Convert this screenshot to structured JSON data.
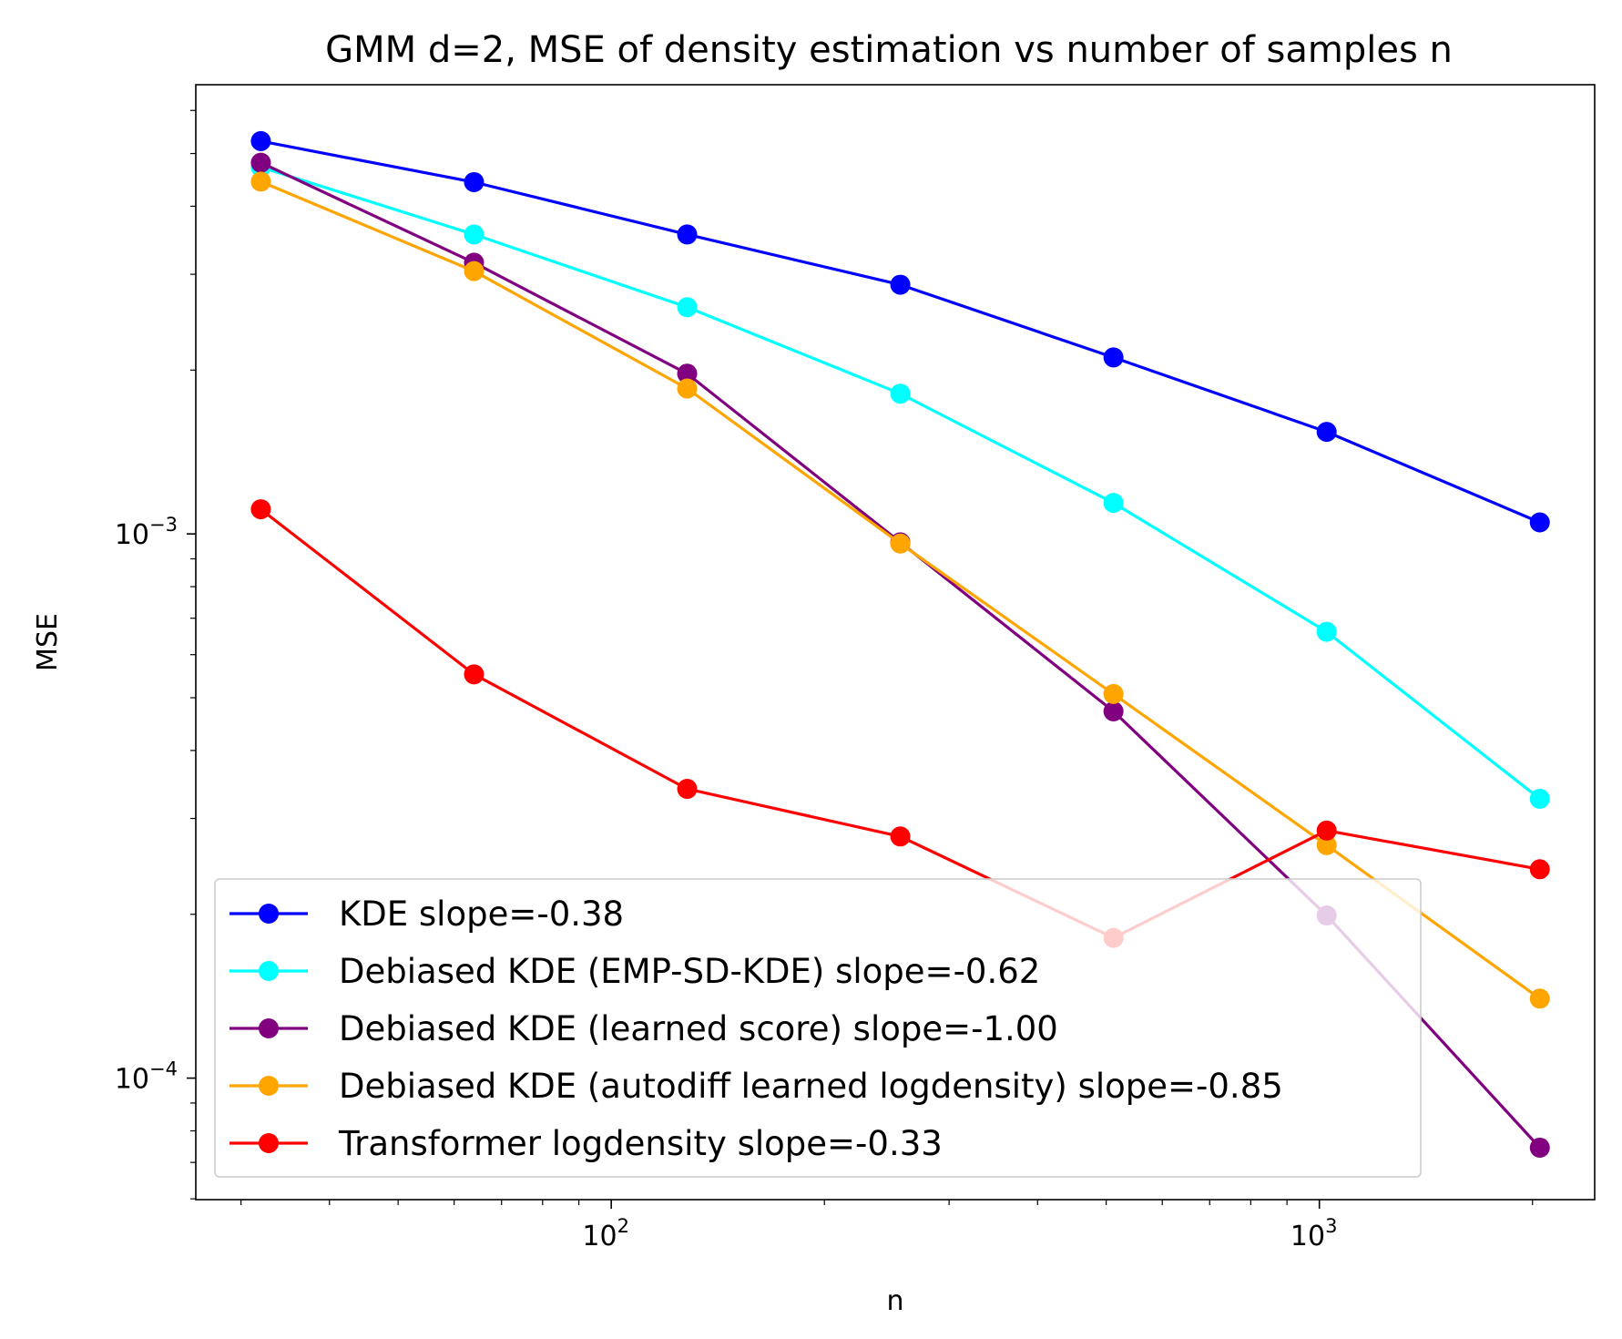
{
  "chart_data": {
    "type": "line",
    "title": "GMM d=2, MSE of density estimation vs number of samples n",
    "xlabel": "n",
    "ylabel": "MSE",
    "xscale": "log",
    "yscale": "log",
    "xlim": [
      25.9,
      2448
    ],
    "ylim": [
      5.98e-05,
      0.00669
    ],
    "x_major_ticks": [
      {
        "value": 100,
        "base": "10",
        "exp": "2"
      },
      {
        "value": 1000,
        "base": "10",
        "exp": "3"
      }
    ],
    "y_major_ticks": [
      {
        "value": 0.0001,
        "base": "10",
        "exp": "−4"
      },
      {
        "value": 0.001,
        "base": "10",
        "exp": "−3"
      }
    ],
    "x": [
      32,
      64,
      128,
      256,
      512,
      1024,
      2048
    ],
    "legend_position": "lower-left",
    "grid": false,
    "series": [
      {
        "name": "KDE slope=-0.38",
        "color": "#0000ff",
        "values": [
          0.00527,
          0.00443,
          0.00355,
          0.00287,
          0.00211,
          0.00154,
          0.00105
        ]
      },
      {
        "name": "Debiased KDE (EMP-SD-KDE) slope=-0.62",
        "color": "#00ffff",
        "values": [
          0.00472,
          0.00355,
          0.00261,
          0.00181,
          0.00114,
          0.000661,
          0.000326
        ]
      },
      {
        "name": "Debiased KDE (learned score) slope=-1.00",
        "color": "#800080",
        "values": [
          0.00481,
          0.00315,
          0.00197,
          0.000965,
          0.000472,
          0.000199,
          7.45e-05
        ]
      },
      {
        "name": "Debiased KDE (autodiff learned logdensity) slope=-0.85",
        "color": "#ffa500",
        "values": [
          0.00444,
          0.00304,
          0.00185,
          0.00096,
          0.000508,
          0.000268,
          0.00014
        ]
      },
      {
        "name": "Transformer logdensity slope=-0.33",
        "color": "#ff0000",
        "values": [
          0.00111,
          0.000552,
          0.00034,
          0.000278,
          0.000181,
          0.000285,
          0.000242
        ]
      }
    ]
  }
}
